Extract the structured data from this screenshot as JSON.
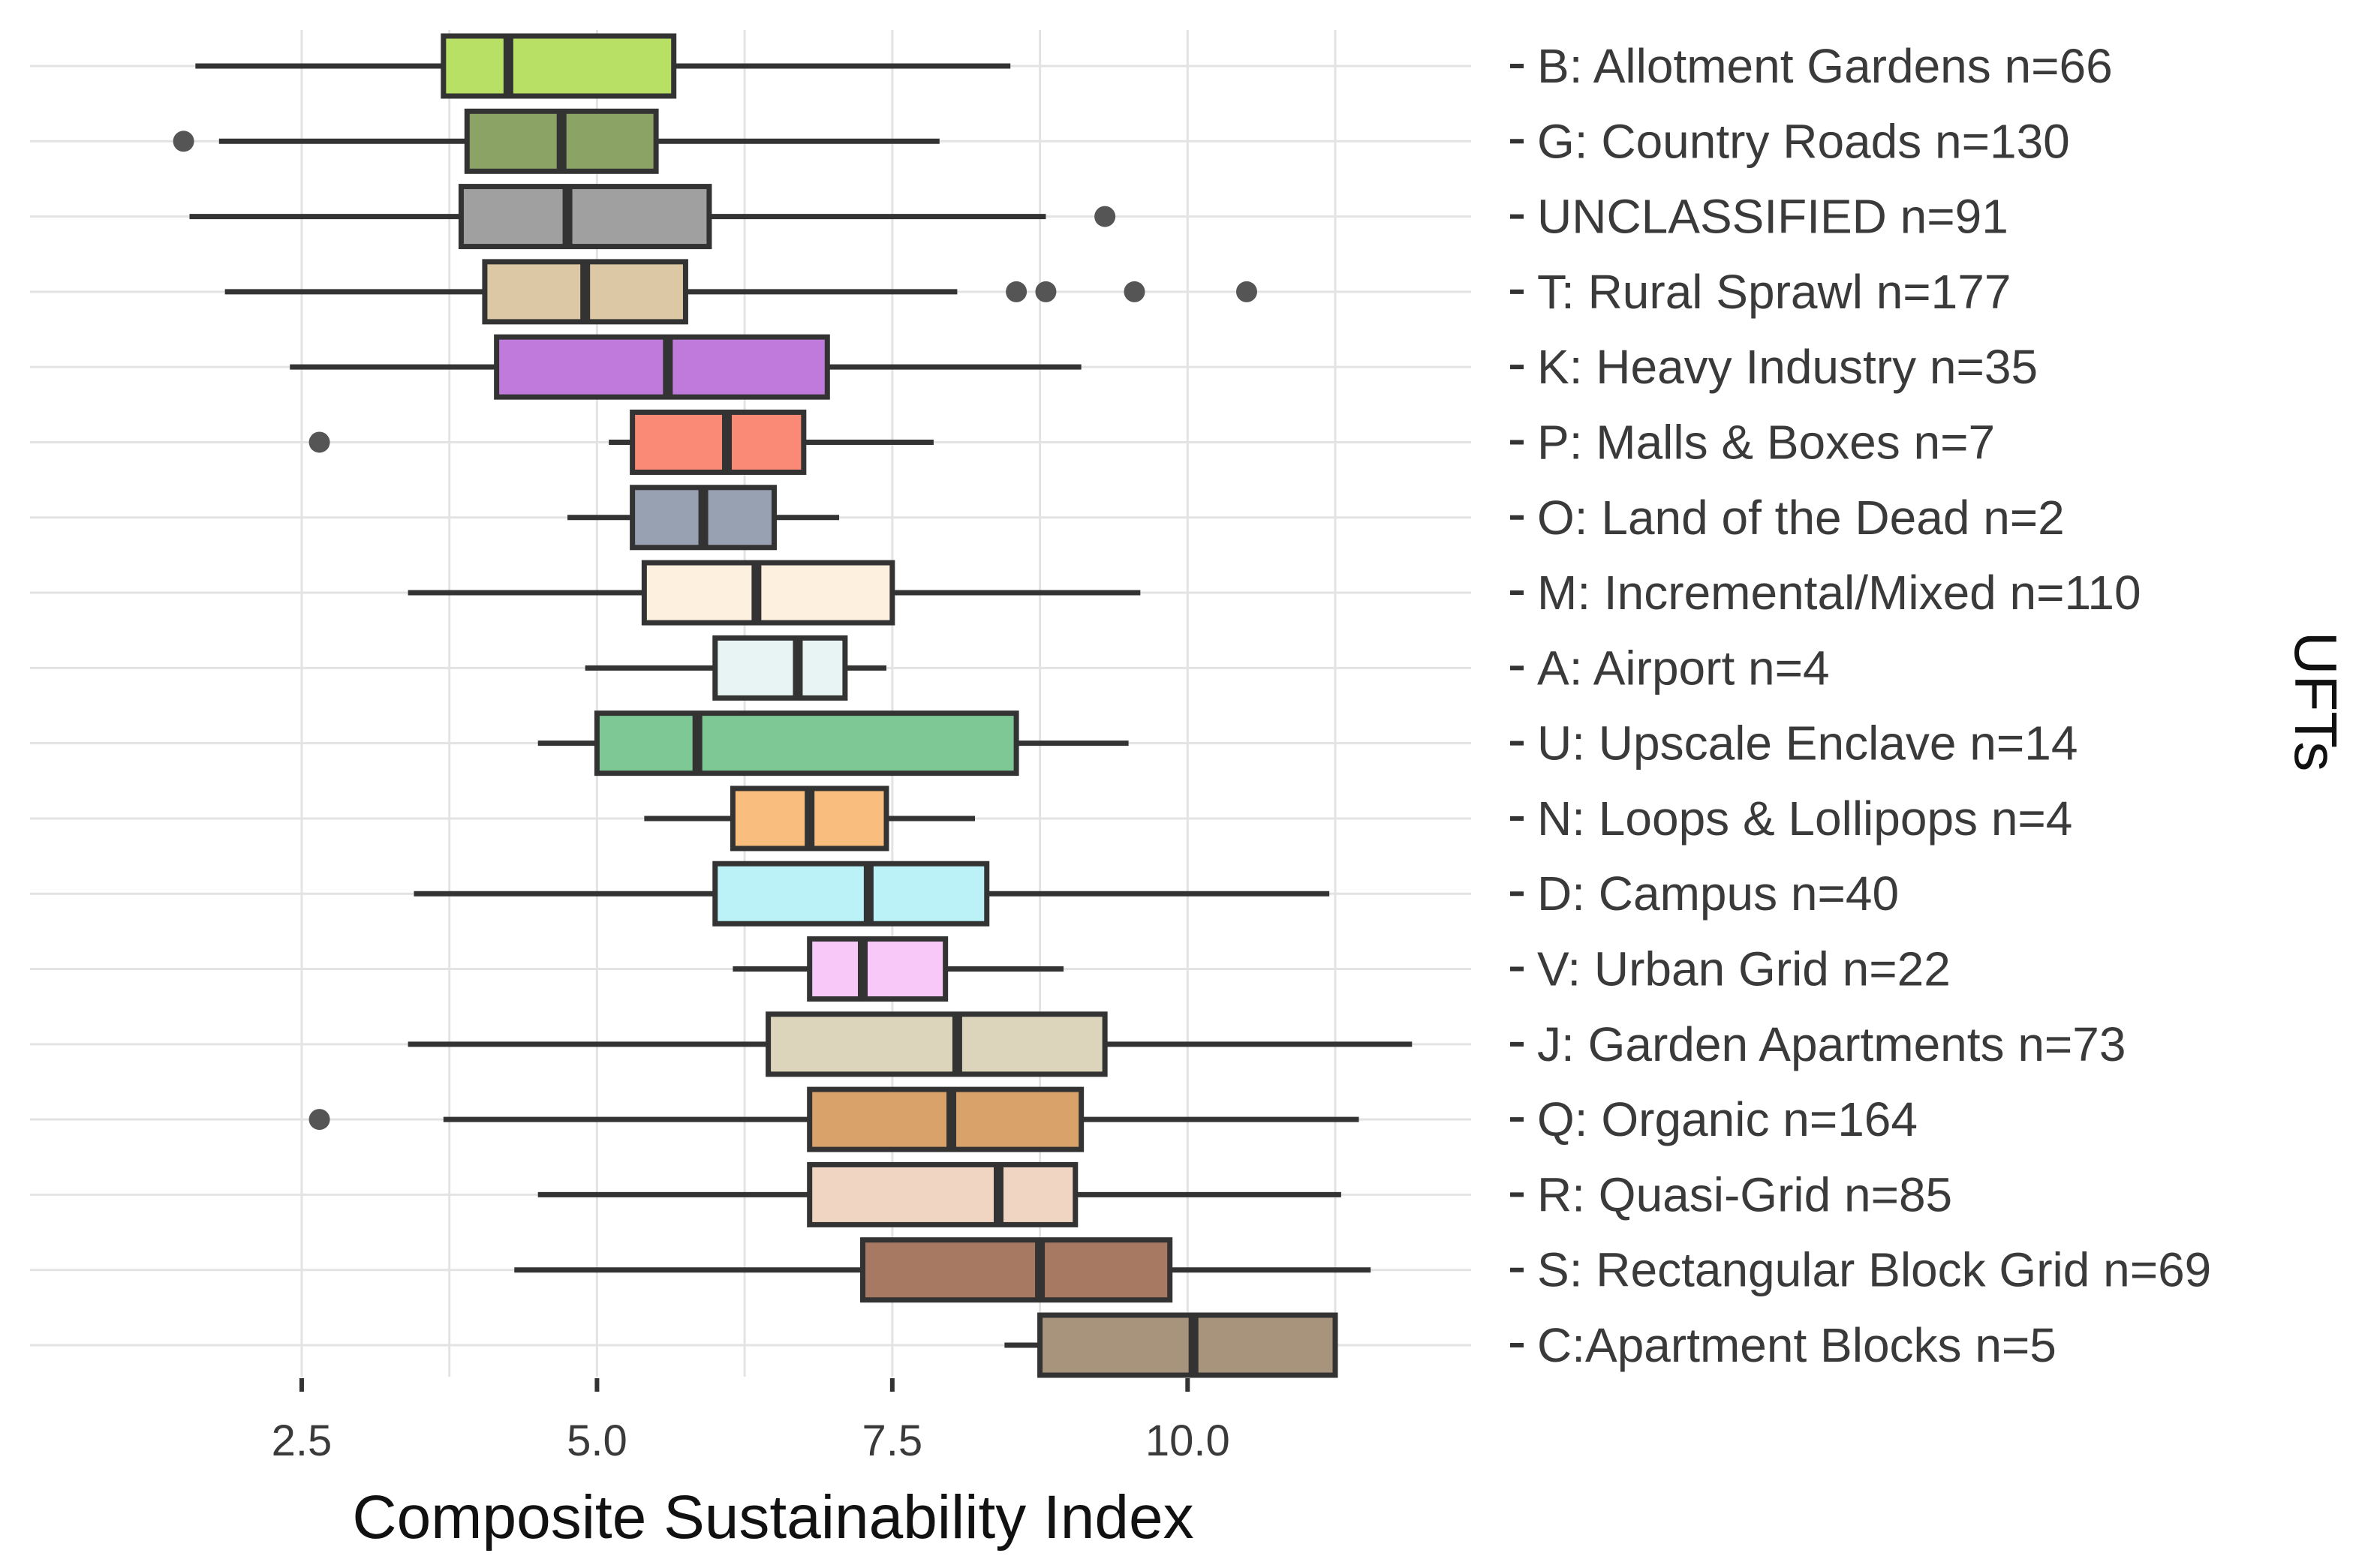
{
  "chart_data": {
    "type": "boxplot",
    "orientation": "horizontal",
    "xlabel": "Composite Sustainability Index",
    "ylabel": "UFTs",
    "x_ticks": [
      2.5,
      5.0,
      7.5,
      10.0
    ],
    "x_tick_labels": [
      "2.5",
      "5.0",
      "7.5",
      "10.0"
    ],
    "xlim": [
      0.2,
      12.4
    ],
    "legend": "none",
    "grid": true,
    "categories": [
      {
        "label": "B: Allotment Gardens n=66",
        "color": "#b8e065",
        "min": 1.6,
        "q1": 3.7,
        "median": 4.25,
        "q3": 5.65,
        "max": 8.5,
        "outliers": []
      },
      {
        "label": "G: Country Roads n=130",
        "color": "#8ba365",
        "min": 1.8,
        "q1": 3.9,
        "median": 4.7,
        "q3": 5.5,
        "max": 7.9,
        "outliers": [
          1.5
        ]
      },
      {
        "label": "UNCLASSIFIED n=91",
        "color": "#a0a0a0",
        "min": 1.55,
        "q1": 3.85,
        "median": 4.75,
        "q3": 5.95,
        "max": 8.8,
        "outliers": [
          9.3
        ]
      },
      {
        "label": "T: Rural Sprawl n=177",
        "color": "#dcc8a5",
        "min": 1.85,
        "q1": 4.05,
        "median": 4.9,
        "q3": 5.75,
        "max": 8.05,
        "outliers": [
          8.55,
          8.8,
          9.55,
          10.5
        ]
      },
      {
        "label": "K: Heavy Industry n=35",
        "color": "#c07adb",
        "min": 2.4,
        "q1": 4.15,
        "median": 5.6,
        "q3": 6.95,
        "max": 9.1,
        "outliers": []
      },
      {
        "label": "P: Malls & Boxes n=7",
        "color": "#fa8a76",
        "min": 5.1,
        "q1": 5.3,
        "median": 6.1,
        "q3": 6.75,
        "max": 7.85,
        "outliers": [
          2.65
        ]
      },
      {
        "label": "O: Land of the Dead n=2",
        "color": "#97a1b1",
        "min": 4.75,
        "q1": 5.3,
        "median": 5.9,
        "q3": 6.5,
        "max": 7.05,
        "outliers": []
      },
      {
        "label": "M: Incremental/Mixed n=110",
        "color": "#fdf0de",
        "min": 3.4,
        "q1": 5.4,
        "median": 6.35,
        "q3": 7.5,
        "max": 9.6,
        "outliers": []
      },
      {
        "label": "A: Airport n=4",
        "color": "#e8f3f3",
        "min": 4.9,
        "q1": 6.0,
        "median": 6.7,
        "q3": 7.1,
        "max": 7.45,
        "outliers": []
      },
      {
        "label": "U: Upscale Enclave n=14",
        "color": "#7ec896",
        "min": 4.5,
        "q1": 5.0,
        "median": 5.85,
        "q3": 8.55,
        "max": 9.5,
        "outliers": []
      },
      {
        "label": "N: Loops & Lollipops n=4",
        "color": "#f9bd7e",
        "min": 5.4,
        "q1": 6.15,
        "median": 6.8,
        "q3": 7.45,
        "max": 8.2,
        "outliers": []
      },
      {
        "label": "D: Campus n=40",
        "color": "#bbf2f7",
        "min": 3.45,
        "q1": 6.0,
        "median": 7.3,
        "q3": 8.3,
        "max": 11.2,
        "outliers": []
      },
      {
        "label": "V: Urban Grid n=22",
        "color": "#f8c8f8",
        "min": 6.15,
        "q1": 6.8,
        "median": 7.25,
        "q3": 7.95,
        "max": 8.95,
        "outliers": []
      },
      {
        "label": "J: Garden Apartments n=73",
        "color": "#dcd5bb",
        "min": 3.4,
        "q1": 6.45,
        "median": 8.05,
        "q3": 9.3,
        "max": 11.9,
        "outliers": []
      },
      {
        "label": "Q: Organic n=164",
        "color": "#d8a26a",
        "min": 3.7,
        "q1": 6.8,
        "median": 8.0,
        "q3": 9.1,
        "max": 11.45,
        "outliers": [
          2.65
        ]
      },
      {
        "label": "R: Quasi-Grid n=85",
        "color": "#f0d6c2",
        "min": 4.5,
        "q1": 6.8,
        "median": 8.4,
        "q3": 9.05,
        "max": 11.3,
        "outliers": []
      },
      {
        "label": "S: Rectangular Block Grid n=69",
        "color": "#a77862",
        "min": 4.3,
        "q1": 7.25,
        "median": 8.75,
        "q3": 9.85,
        "max": 11.55,
        "outliers": []
      },
      {
        "label": "C:Apartment Blocks n=5",
        "color": "#a8937c",
        "min": 8.45,
        "q1": 8.75,
        "median": 10.05,
        "q3": 11.25,
        "max": 11.25,
        "outliers": []
      }
    ]
  }
}
